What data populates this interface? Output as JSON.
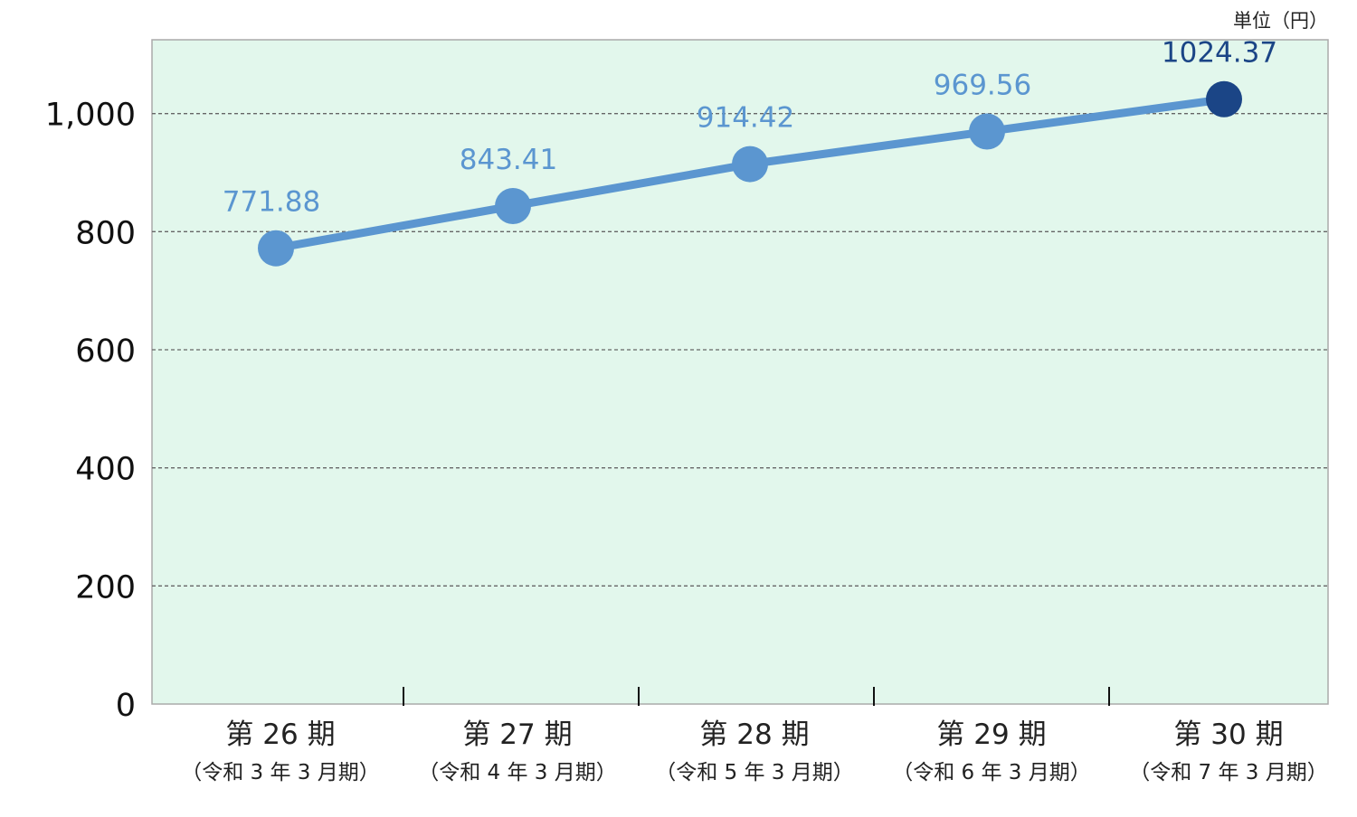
{
  "chart_data": {
    "type": "line",
    "unit_label": "単位（円）",
    "categories": [
      {
        "label": "第 26 期",
        "sub": "（令和 3 年 3 月期）"
      },
      {
        "label": "第 27 期",
        "sub": "（令和 4 年 3 月期）"
      },
      {
        "label": "第 28 期",
        "sub": "（令和 5 年 3 月期）"
      },
      {
        "label": "第 29 期",
        "sub": "（令和 6 年 3 月期）"
      },
      {
        "label": "第 30 期",
        "sub": "（令和 7 年 3 月期）"
      }
    ],
    "values": [
      771.88,
      843.41,
      914.42,
      969.56,
      1024.37
    ],
    "data_labels": [
      "771.88",
      "843.41",
      "914.42",
      "969.56",
      "1024.37"
    ],
    "yticks": [
      0,
      200,
      400,
      600,
      800,
      1000
    ],
    "ytick_labels": [
      "0",
      "200",
      "400",
      "600",
      "800",
      "1,000"
    ],
    "ylim": [
      0,
      1125
    ],
    "grid": true,
    "colors": {
      "line": "#5b96d0",
      "highlight": "#1b4586",
      "background": "#e2f7ec",
      "grid": "#666666"
    }
  }
}
